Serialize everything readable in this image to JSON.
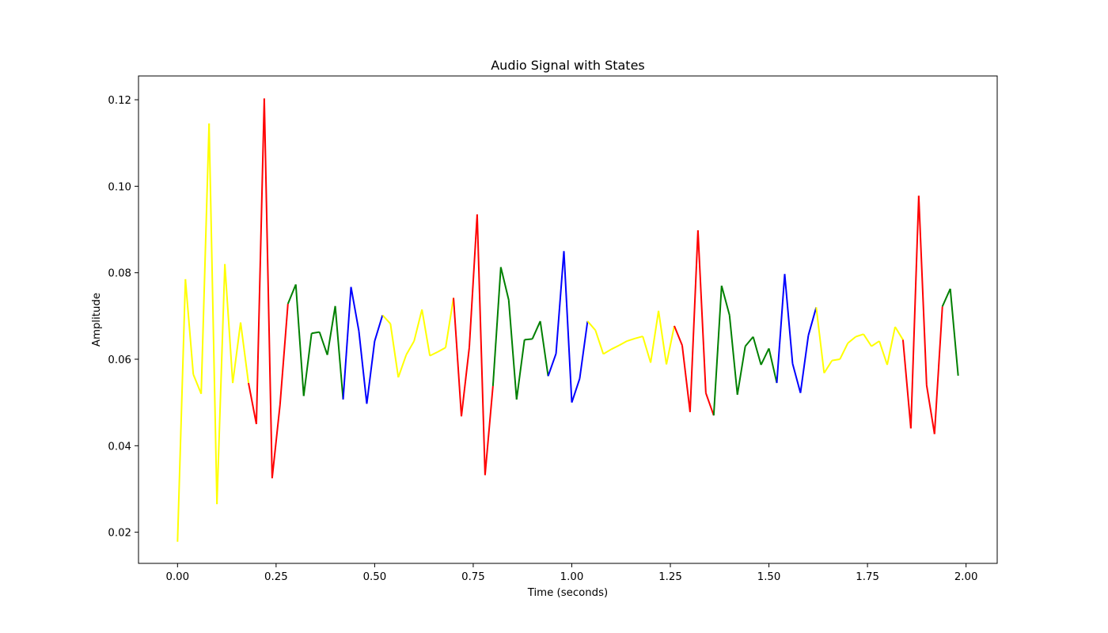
{
  "chart_data": {
    "type": "line",
    "title": "Audio Signal with States",
    "xlabel": "Time (seconds)",
    "ylabel": "Amplitude",
    "xlim": [
      -0.099,
      2.079
    ],
    "ylim": [
      0.0128,
      0.1255
    ],
    "x_ticks": [
      0.0,
      0.25,
      0.5,
      0.75,
      1.0,
      1.25,
      1.5,
      1.75,
      2.0
    ],
    "x_tick_labels": [
      "0.00",
      "0.25",
      "0.50",
      "0.75",
      "1.00",
      "1.25",
      "1.50",
      "1.75",
      "2.00"
    ],
    "y_ticks": [
      0.02,
      0.04,
      0.06,
      0.08,
      0.1,
      0.12
    ],
    "y_tick_labels": [
      "0.02",
      "0.04",
      "0.06",
      "0.08",
      "0.10",
      "0.12"
    ],
    "grid": false,
    "legend": "none",
    "state_colors": [
      "#ffff00",
      "#ff0000",
      "#008000",
      "#0000ff"
    ],
    "x": [
      0.0,
      0.02,
      0.04,
      0.06,
      0.08,
      0.1,
      0.12,
      0.14,
      0.16,
      0.18,
      0.2,
      0.22,
      0.24,
      0.26,
      0.28,
      0.3,
      0.32,
      0.34,
      0.36,
      0.38,
      0.4,
      0.42,
      0.44,
      0.46,
      0.48,
      0.5,
      0.52,
      0.54,
      0.56,
      0.58,
      0.6,
      0.62,
      0.64,
      0.66,
      0.68,
      0.7,
      0.72,
      0.74,
      0.76,
      0.78,
      0.8,
      0.82,
      0.84,
      0.86,
      0.88,
      0.9,
      0.92,
      0.94,
      0.96,
      0.98,
      1.0,
      1.02,
      1.04,
      1.06,
      1.08,
      1.1,
      1.12,
      1.14,
      1.16,
      1.18,
      1.2,
      1.22,
      1.24,
      1.26,
      1.28,
      1.3,
      1.32,
      1.34,
      1.36,
      1.38,
      1.4,
      1.42,
      1.44,
      1.46,
      1.48,
      1.5,
      1.52,
      1.54,
      1.56,
      1.58,
      1.6,
      1.62,
      1.64,
      1.66,
      1.68,
      1.7,
      1.72,
      1.74,
      1.76,
      1.78,
      1.8,
      1.82,
      1.84,
      1.86,
      1.88,
      1.9,
      1.92,
      1.94,
      1.96,
      1.98
    ],
    "y": [
      0.0178,
      0.0785,
      0.0565,
      0.052,
      0.1145,
      0.0265,
      0.082,
      0.0545,
      0.0685,
      0.0545,
      0.045,
      0.1203,
      0.0325,
      0.0495,
      0.0728,
      0.0773,
      0.0515,
      0.066,
      0.0663,
      0.061,
      0.0723,
      0.0507,
      0.0767,
      0.0665,
      0.0497,
      0.0642,
      0.0702,
      0.0682,
      0.0558,
      0.061,
      0.0642,
      0.0715,
      0.0608,
      0.0617,
      0.0627,
      0.0742,
      0.0468,
      0.0627,
      0.0935,
      0.0332,
      0.0538,
      0.0813,
      0.0737,
      0.0507,
      0.0645,
      0.0647,
      0.0688,
      0.0561,
      0.0613,
      0.085,
      0.05,
      0.0555,
      0.0688,
      0.0667,
      0.0612,
      0.0623,
      0.0632,
      0.0642,
      0.0648,
      0.0653,
      0.0592,
      0.0712,
      0.0588,
      0.0677,
      0.0632,
      0.0478,
      0.0898,
      0.0522,
      0.047,
      0.077,
      0.0702,
      0.0518,
      0.063,
      0.0652,
      0.0587,
      0.0625,
      0.0545,
      0.0797,
      0.059,
      0.0522,
      0.0655,
      0.072,
      0.0568,
      0.0597,
      0.06,
      0.0637,
      0.0652,
      0.0658,
      0.063,
      0.0642,
      0.0587,
      0.0675,
      0.0645,
      0.044,
      0.0978,
      0.054,
      0.0427,
      0.0722,
      0.0763,
      0.0562
    ],
    "state": [
      0,
      0,
      0,
      0,
      0,
      0,
      0,
      0,
      0,
      0,
      1,
      1,
      1,
      1,
      1,
      2,
      2,
      2,
      2,
      2,
      2,
      2,
      3,
      3,
      3,
      3,
      3,
      0,
      0,
      0,
      0,
      0,
      0,
      0,
      0,
      0,
      1,
      1,
      1,
      1,
      1,
      2,
      2,
      2,
      2,
      2,
      2,
      2,
      3,
      3,
      3,
      3,
      3,
      0,
      0,
      0,
      0,
      0,
      0,
      0,
      0,
      0,
      0,
      0,
      1,
      1,
      1,
      1,
      1,
      2,
      2,
      2,
      2,
      2,
      2,
      2,
      2,
      3,
      3,
      3,
      3,
      3,
      0,
      0,
      0,
      0,
      0,
      0,
      0,
      0,
      0,
      0,
      0,
      1,
      1,
      1,
      1,
      1,
      2,
      2
    ]
  }
}
